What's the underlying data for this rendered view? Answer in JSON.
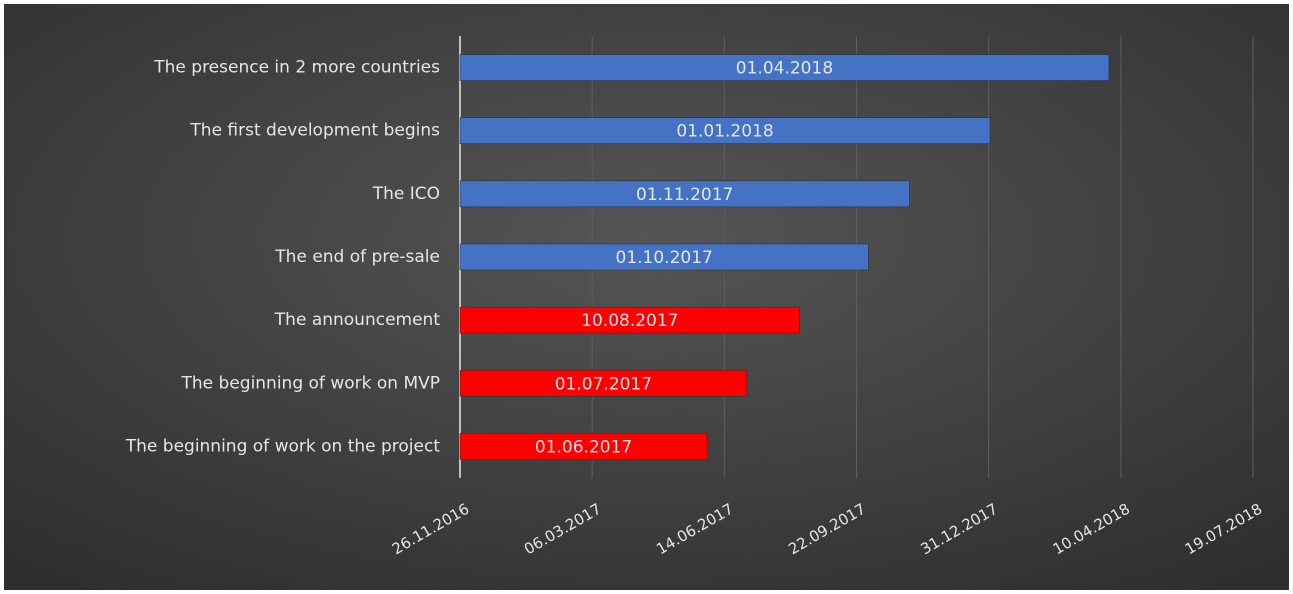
{
  "chart_data": {
    "type": "barh",
    "categories": [
      "The beginning of work on the project",
      "The beginning of work on MVP",
      "The announcement",
      "The end of pre-sale",
      "The ICO",
      "The first development begins",
      "The presence in 2 more countries"
    ],
    "values": [
      42887,
      42917,
      42957,
      43009,
      43040,
      43101,
      43191
    ],
    "value_labels": [
      "01.06.2017",
      "01.07.2017",
      "10.08.2017",
      "01.10.2017",
      "01.11.2017",
      "01.01.2018",
      "01.04.2018"
    ],
    "colors": [
      "#ff0000",
      "#ff0000",
      "#ff0000",
      "#4472c4",
      "#4472c4",
      "#4472c4",
      "#4472c4"
    ],
    "xlim": [
      42700,
      43300
    ],
    "xticks": [
      {
        "value": 42700,
        "label": "26.11.2016"
      },
      {
        "value": 42800,
        "label": "06.03.2017"
      },
      {
        "value": 42900,
        "label": "14.06.2017"
      },
      {
        "value": 43000,
        "label": "22.09.2017"
      },
      {
        "value": 43100,
        "label": "31.12.2017"
      },
      {
        "value": 43200,
        "label": "10.04.2018"
      },
      {
        "value": 43300,
        "label": "19.07.2018"
      }
    ],
    "grid": true
  }
}
